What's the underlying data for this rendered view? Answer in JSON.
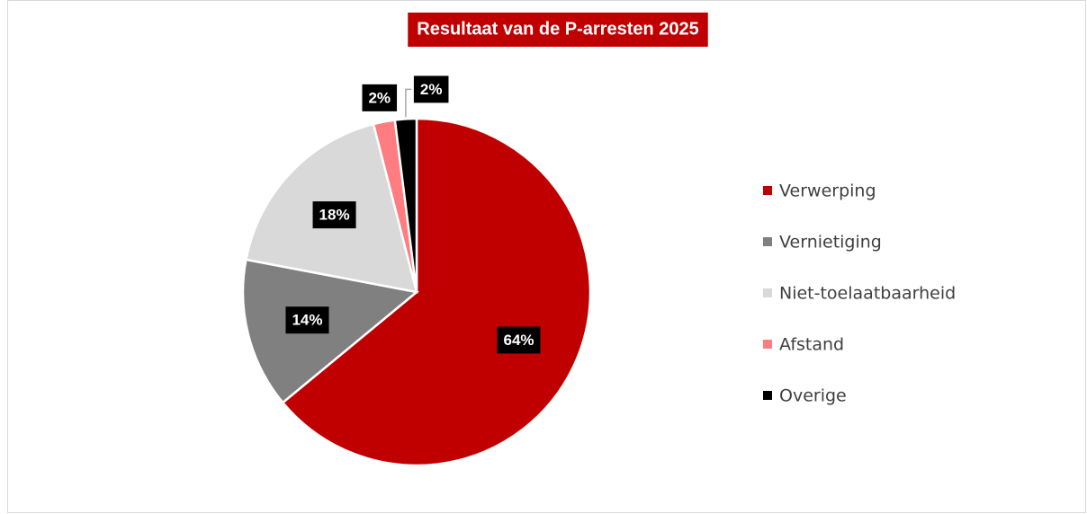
{
  "chart_data": {
    "type": "pie",
    "title": "Resultaat van de P-arresten 2025",
    "categories": [
      "Verwerping",
      "Vernietiging",
      "Niet-toelaatbaarheid",
      "Afstand",
      "Overige"
    ],
    "values": [
      64,
      14,
      18,
      2,
      2
    ],
    "value_labels": [
      "64%",
      "14%",
      "18%",
      "2%",
      "2%"
    ],
    "colors": [
      "#c00000",
      "#808080",
      "#d9d9d9",
      "#ff7c80",
      "#000000"
    ],
    "legend": "right"
  }
}
